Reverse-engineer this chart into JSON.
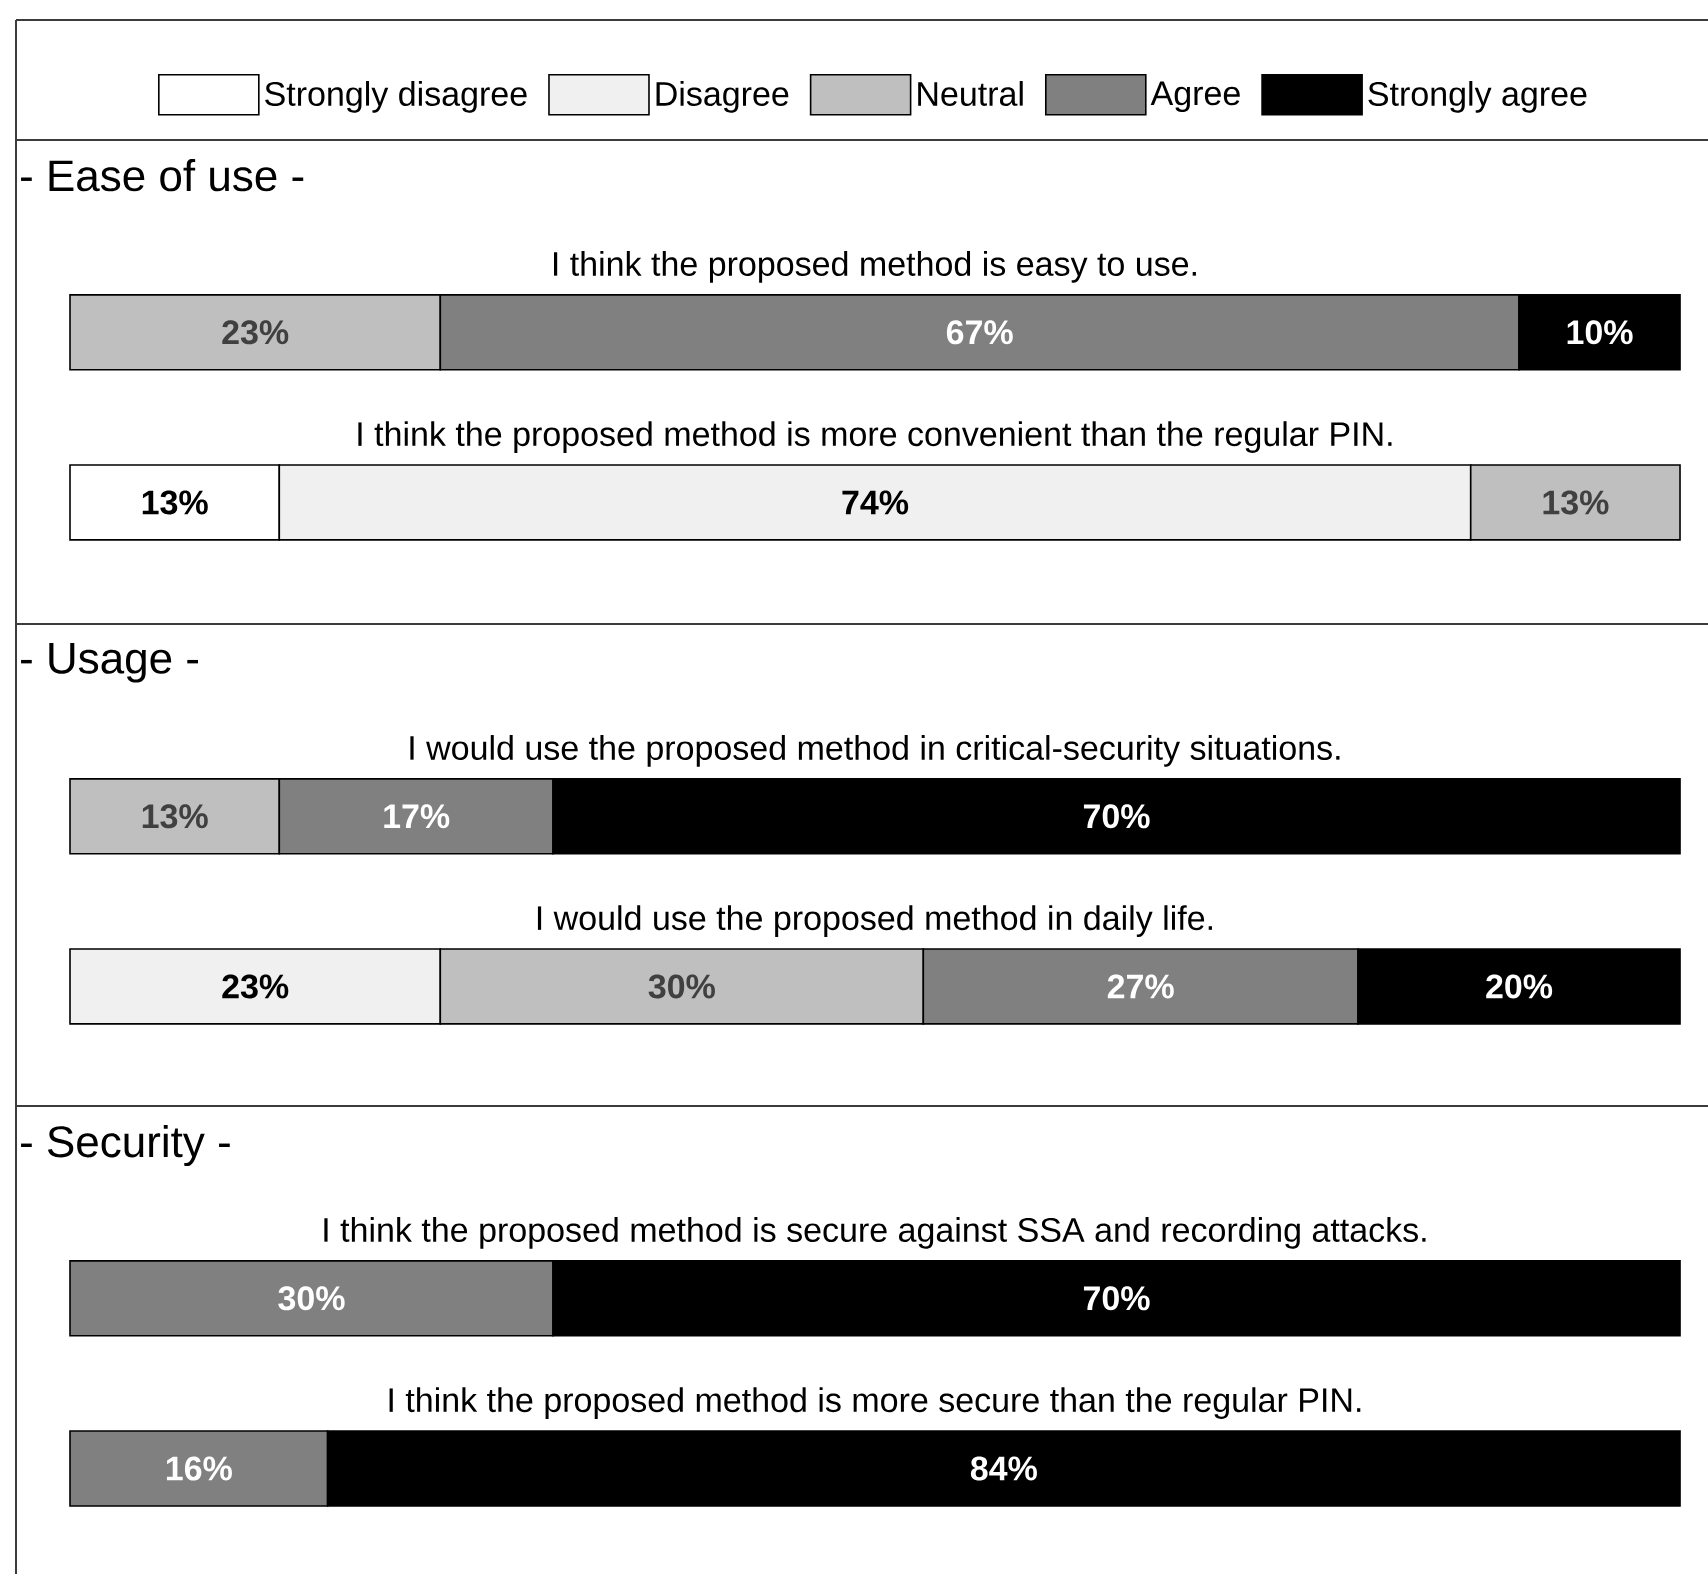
{
  "chart_data": [
    {
      "type": "bar",
      "orientation": "horizontal",
      "stacked": true,
      "title": "- Ease of use -",
      "legend": "top",
      "tick_labels": false,
      "xlim": [
        0,
        100
      ],
      "categories": [
        "I think the proposed method is easy to use.",
        "I think the proposed method is more convenient than the regular PIN."
      ],
      "series": [
        {
          "name": "Strongly disagree",
          "color": "#ffffff",
          "values": [
            null,
            13
          ],
          "value_labels": [
            null,
            "13%"
          ]
        },
        {
          "name": "Disagree",
          "color": "#f0f0f0",
          "values": [
            null,
            74
          ],
          "value_labels": [
            null,
            "74%"
          ]
        },
        {
          "name": "Neutral",
          "color": "#bfbfbf",
          "values": [
            23,
            13
          ],
          "value_labels": [
            "23%",
            "13%"
          ]
        },
        {
          "name": "Agree",
          "color": "#808080",
          "values": [
            67,
            null
          ],
          "value_labels": [
            "67%",
            null
          ]
        },
        {
          "name": "Strongly agree",
          "color": "#000000",
          "values": [
            10,
            null
          ],
          "value_labels": [
            "10%",
            null
          ]
        }
      ]
    },
    {
      "type": "bar",
      "orientation": "horizontal",
      "stacked": true,
      "title": "- Usage -",
      "tick_labels": false,
      "xlim": [
        0,
        100
      ],
      "categories": [
        "I would use the proposed method in critical-security situations.",
        "I would use the proposed method in daily life."
      ],
      "series": [
        {
          "color": "#f0f0f0",
          "values": [
            null,
            23
          ],
          "value_labels": [
            null,
            "23%"
          ]
        },
        {
          "color": "#bfbfbf",
          "values": [
            13,
            30
          ],
          "value_labels": [
            "13%",
            "30%"
          ]
        },
        {
          "color": "#808080",
          "values": [
            17,
            27
          ],
          "value_labels": [
            "17%",
            "27%"
          ]
        },
        {
          "color": "#000000",
          "values": [
            70,
            20
          ],
          "value_labels": [
            "70%",
            "20%"
          ]
        }
      ]
    },
    {
      "type": "bar",
      "orientation": "horizontal",
      "stacked": true,
      "title": "- Security -",
      "tick_labels": false,
      "xlim": [
        0,
        100
      ],
      "categories": [
        "I think the proposed method is secure against SSA and recording attacks.",
        "I think the proposed method is more secure than the regular PIN."
      ],
      "series": [
        {
          "color": "#808080",
          "values": [
            30,
            16
          ],
          "value_labels": [
            "30%",
            "16%"
          ]
        },
        {
          "color": "#000000",
          "values": [
            70,
            84
          ],
          "value_labels": [
            "70%",
            "84%"
          ]
        }
      ]
    }
  ]
}
